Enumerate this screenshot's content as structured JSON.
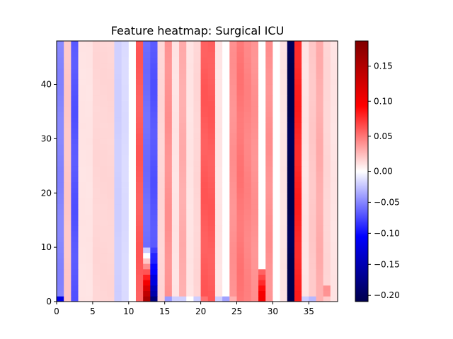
{
  "chart_data": {
    "type": "heatmap",
    "title": "Feature heatmap: Surgical ICU",
    "xlabel": "",
    "ylabel": "",
    "x_range": [
      0,
      39
    ],
    "y_range": [
      0,
      48
    ],
    "x_ticks": [
      0,
      5,
      10,
      15,
      20,
      25,
      30,
      35
    ],
    "y_ticks": [
      0,
      10,
      20,
      30,
      40
    ],
    "colorbar": {
      "colormap": "seismic",
      "vmin": -0.21,
      "vmax": 0.186,
      "ticks": [
        0.15,
        0.1,
        0.05,
        0.0,
        -0.05,
        -0.1,
        -0.15,
        -0.2
      ],
      "tick_labels": [
        "0.15",
        "0.10",
        "0.05",
        "0.00",
        "−0.05",
        "−0.10",
        "−0.15",
        "−0.20"
      ]
    },
    "column_values": [
      -0.05,
      0.02,
      -0.07,
      0.01,
      0.01,
      0.015,
      0.015,
      0.015,
      -0.02,
      -0.015,
      0.0,
      0.06,
      -0.06,
      -0.07,
      0.015,
      0.04,
      0.01,
      0.03,
      0.01,
      0.015,
      0.06,
      0.06,
      0.01,
      0.0,
      0.04,
      0.05,
      0.045,
      0.04,
      0.0,
      0.04,
      0.0,
      0.01,
      -0.21,
      0.08,
      0.01,
      0.02,
      0.03,
      0.015,
      0.01
    ],
    "bottom_rows": [
      {
        "row": 0,
        "values": {
          "0": -0.12,
          "12": 0.16,
          "13": -0.18,
          "15": -0.04,
          "16": -0.02,
          "17": -0.02,
          "18": 0.0,
          "19": -0.02,
          "20": 0.05,
          "22": -0.02,
          "23": -0.04,
          "24": 0.03,
          "28": 0.1,
          "32": -0.21,
          "34": -0.02,
          "35": -0.03,
          "37": 0.02
        }
      },
      {
        "row": 1,
        "values": {
          "12": 0.14,
          "13": -0.15,
          "28": 0.1,
          "37": 0.04
        }
      },
      {
        "row": 2,
        "values": {
          "12": 0.12,
          "13": -0.14,
          "28": 0.09,
          "37": 0.04
        }
      },
      {
        "row": 3,
        "values": {
          "12": 0.1,
          "13": -0.12,
          "28": 0.08
        }
      },
      {
        "row": 4,
        "values": {
          "12": 0.08,
          "13": -0.12,
          "28": 0.07
        }
      },
      {
        "row": 5,
        "values": {
          "12": 0.06,
          "13": -0.1,
          "28": 0.06
        }
      },
      {
        "row": 6,
        "values": {
          "12": 0.04,
          "13": -0.1
        }
      },
      {
        "row": 7,
        "values": {
          "12": 0.02,
          "13": -0.09
        }
      },
      {
        "row": 8,
        "values": {
          "12": 0.0,
          "13": -0.09
        }
      },
      {
        "row": 9,
        "values": {
          "12": -0.02,
          "13": -0.08
        }
      }
    ]
  }
}
